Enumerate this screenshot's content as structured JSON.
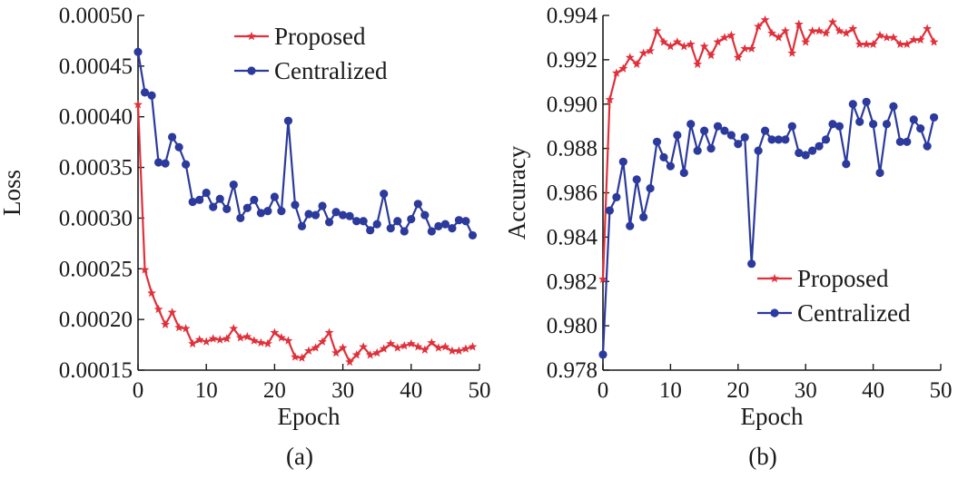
{
  "colors": {
    "proposed": "#e0303a",
    "centralized": "#2b3a9c",
    "axis": "#1a1a1a"
  },
  "chart_data": [
    {
      "type": "line",
      "panel_label": "(a)",
      "xlabel": "Epoch",
      "ylabel": "Loss",
      "xlim": [
        0,
        50
      ],
      "ylim": [
        0.00015,
        0.0005
      ],
      "xticks": [
        0,
        10,
        20,
        30,
        40,
        50
      ],
      "xtick_labels": [
        "0",
        "10",
        "20",
        "30",
        "40",
        "50"
      ],
      "yticks": [
        0.00015,
        0.0002,
        0.00025,
        0.0003,
        0.00035,
        0.0004,
        0.00045,
        0.0005
      ],
      "ytick_labels": [
        "0.00015",
        "0.00020",
        "0.00025",
        "0.00030",
        "0.00035",
        "0.00040",
        "0.00045",
        "0.00050"
      ],
      "legend_position": "top-right",
      "x": [
        0,
        1,
        2,
        3,
        4,
        5,
        6,
        7,
        8,
        9,
        10,
        11,
        12,
        13,
        14,
        15,
        16,
        17,
        18,
        19,
        20,
        21,
        22,
        23,
        24,
        25,
        26,
        27,
        28,
        29,
        30,
        31,
        32,
        33,
        34,
        35,
        36,
        37,
        38,
        39,
        40,
        41,
        42,
        43,
        44,
        45,
        46,
        47,
        48,
        49
      ],
      "series": [
        {
          "name": "Proposed",
          "color_key": "proposed",
          "marker": "star",
          "values": [
            0.000412,
            0.000249,
            0.000226,
            0.00021,
            0.000195,
            0.000207,
            0.000192,
            0.000191,
            0.000176,
            0.00018,
            0.000178,
            0.000181,
            0.00018,
            0.000181,
            0.000191,
            0.000182,
            0.000183,
            0.000179,
            0.000177,
            0.000176,
            0.000187,
            0.000182,
            0.000179,
            0.000163,
            0.000162,
            0.000169,
            0.000172,
            0.000178,
            0.000187,
            0.000167,
            0.000172,
            0.000158,
            0.000165,
            0.000173,
            0.000165,
            0.000167,
            0.000171,
            0.000176,
            0.000172,
            0.000174,
            0.000176,
            0.000173,
            0.00017,
            0.000177,
            0.000172,
            0.000173,
            0.000169,
            0.000169,
            0.000171,
            0.000173
          ]
        },
        {
          "name": "Centralized",
          "color_key": "centralized",
          "marker": "circle",
          "values": [
            0.000464,
            0.000424,
            0.000421,
            0.000355,
            0.000354,
            0.00038,
            0.00037,
            0.000353,
            0.000316,
            0.000318,
            0.000325,
            0.000311,
            0.000319,
            0.000309,
            0.000333,
            0.0003,
            0.00031,
            0.000318,
            0.000305,
            0.000307,
            0.000321,
            0.000307,
            0.000396,
            0.000313,
            0.000292,
            0.000304,
            0.000303,
            0.000312,
            0.000296,
            0.000306,
            0.000303,
            0.000302,
            0.000297,
            0.000297,
            0.000288,
            0.000294,
            0.000324,
            0.00029,
            0.000297,
            0.000287,
            0.000299,
            0.000314,
            0.000303,
            0.000287,
            0.000292,
            0.000294,
            0.00029,
            0.000298,
            0.000297,
            0.000283
          ]
        }
      ]
    },
    {
      "type": "line",
      "panel_label": "(b)",
      "xlabel": "Epoch",
      "ylabel": "Accuracy",
      "xlim": [
        0,
        50
      ],
      "ylim": [
        0.978,
        0.994
      ],
      "xticks": [
        0,
        10,
        20,
        30,
        40,
        50
      ],
      "xtick_labels": [
        "0",
        "10",
        "20",
        "30",
        "40",
        "50"
      ],
      "yticks": [
        0.978,
        0.98,
        0.982,
        0.984,
        0.986,
        0.988,
        0.99,
        0.992,
        0.994
      ],
      "ytick_labels": [
        "0.978",
        "0.980",
        "0.982",
        "0.984",
        "0.986",
        "0.988",
        "0.990",
        "0.992",
        "0.994"
      ],
      "legend_position": "bottom-right",
      "x": [
        0,
        1,
        2,
        3,
        4,
        5,
        6,
        7,
        8,
        9,
        10,
        11,
        12,
        13,
        14,
        15,
        16,
        17,
        18,
        19,
        20,
        21,
        22,
        23,
        24,
        25,
        26,
        27,
        28,
        29,
        30,
        31,
        32,
        33,
        34,
        35,
        36,
        37,
        38,
        39,
        40,
        41,
        42,
        43,
        44,
        45,
        46,
        47,
        48,
        49
      ],
      "series": [
        {
          "name": "Proposed",
          "color_key": "proposed",
          "marker": "star",
          "values": [
            0.9821,
            0.9902,
            0.9914,
            0.9916,
            0.9921,
            0.9918,
            0.9923,
            0.9924,
            0.9933,
            0.9928,
            0.9926,
            0.9928,
            0.9926,
            0.9927,
            0.9918,
            0.9926,
            0.9922,
            0.9928,
            0.993,
            0.9931,
            0.9921,
            0.9925,
            0.9925,
            0.9935,
            0.9938,
            0.9932,
            0.993,
            0.9933,
            0.9923,
            0.9936,
            0.9928,
            0.9933,
            0.9933,
            0.9932,
            0.9937,
            0.9933,
            0.9932,
            0.9934,
            0.9927,
            0.9927,
            0.9927,
            0.9931,
            0.993,
            0.993,
            0.9927,
            0.9927,
            0.9929,
            0.9929,
            0.9934,
            0.9928
          ]
        },
        {
          "name": "Centralized",
          "color_key": "centralized",
          "marker": "circle",
          "values": [
            0.9787,
            0.9852,
            0.9858,
            0.9874,
            0.9845,
            0.9866,
            0.9849,
            0.9862,
            0.9883,
            0.9876,
            0.9872,
            0.9886,
            0.9869,
            0.9891,
            0.9879,
            0.9888,
            0.988,
            0.989,
            0.9888,
            0.9886,
            0.9882,
            0.9885,
            0.9828,
            0.9879,
            0.9888,
            0.9884,
            0.9884,
            0.9884,
            0.989,
            0.9878,
            0.9877,
            0.9879,
            0.9881,
            0.9884,
            0.9891,
            0.989,
            0.9873,
            0.99,
            0.9892,
            0.9901,
            0.9891,
            0.9869,
            0.9891,
            0.9899,
            0.9883,
            0.9883,
            0.9893,
            0.9889,
            0.9881,
            0.9894
          ]
        }
      ]
    }
  ]
}
